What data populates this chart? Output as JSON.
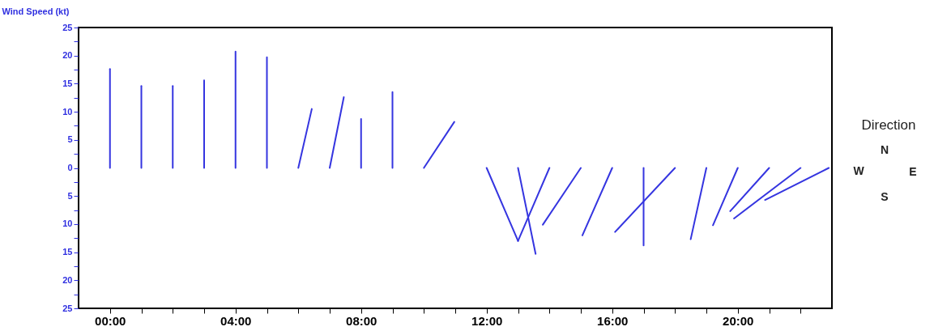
{
  "chart_data": {
    "type": "line",
    "ylabel": "Wind Speed (kt)",
    "annotations": [
      "Direction",
      "N",
      "W",
      "E",
      "S"
    ],
    "xlim": [
      -1,
      23
    ],
    "ylim": [
      -25,
      25
    ],
    "xticks": [
      {
        "value": 0,
        "label": "00:00"
      },
      {
        "value": 1,
        "label": null
      },
      {
        "value": 2,
        "label": null
      },
      {
        "value": 3,
        "label": null
      },
      {
        "value": 4,
        "label": "04:00"
      },
      {
        "value": 5,
        "label": null
      },
      {
        "value": 6,
        "label": null
      },
      {
        "value": 7,
        "label": null
      },
      {
        "value": 8,
        "label": "08:00"
      },
      {
        "value": 9,
        "label": null
      },
      {
        "value": 10,
        "label": null
      },
      {
        "value": 11,
        "label": null
      },
      {
        "value": 12,
        "label": "12:00"
      },
      {
        "value": 13,
        "label": null
      },
      {
        "value": 14,
        "label": null
      },
      {
        "value": 15,
        "label": null
      },
      {
        "value": 16,
        "label": "16:00"
      },
      {
        "value": 17,
        "label": null
      },
      {
        "value": 18,
        "label": null
      },
      {
        "value": 19,
        "label": null
      },
      {
        "value": 20,
        "label": "20:00"
      },
      {
        "value": 21,
        "label": null
      },
      {
        "value": 22,
        "label": null
      }
    ],
    "yticks": [
      {
        "value": -25,
        "label": "25"
      },
      {
        "value": -22.5,
        "label": null
      },
      {
        "value": -20,
        "label": "20"
      },
      {
        "value": -17.5,
        "label": null
      },
      {
        "value": -15,
        "label": "15"
      },
      {
        "value": -12.5,
        "label": null
      },
      {
        "value": -10,
        "label": "10"
      },
      {
        "value": -7.5,
        "label": null
      },
      {
        "value": -5,
        "label": "5"
      },
      {
        "value": -2.5,
        "label": null
      },
      0,
      {
        "value": 2.5,
        "label": null
      },
      5,
      {
        "value": 7.5,
        "label": null
      },
      10,
      {
        "value": 12.5,
        "label": null
      },
      15,
      {
        "value": 17.5,
        "label": null
      },
      20,
      {
        "value": 22.5,
        "label": null
      },
      25
    ],
    "grid": false,
    "legend": false,
    "marker": "none",
    "line_style": "solid",
    "series": [
      {
        "color": "#3535e0",
        "x": [
          0,
          0
        ],
        "values": [
          0,
          17.6
        ]
      },
      {
        "color": "#3535e0",
        "x": [
          1,
          1
        ],
        "values": [
          0,
          14.6
        ]
      },
      {
        "color": "#3535e0",
        "x": [
          2,
          2
        ],
        "values": [
          0,
          14.6
        ]
      },
      {
        "color": "#3535e0",
        "x": [
          3,
          3
        ],
        "values": [
          0,
          15.6
        ]
      },
      {
        "color": "#3535e0",
        "x": [
          4,
          4
        ],
        "values": [
          0,
          20.7
        ]
      },
      {
        "color": "#3535e0",
        "x": [
          5,
          5
        ],
        "values": [
          0,
          19.7
        ]
      },
      {
        "color": "#3535e0",
        "x": [
          6,
          6.43
        ],
        "values": [
          0,
          10.5
        ]
      },
      {
        "color": "#3535e0",
        "x": [
          7,
          7.45
        ],
        "values": [
          0,
          12.6
        ]
      },
      {
        "color": "#3535e0",
        "x": [
          8,
          8
        ],
        "values": [
          0,
          8.7
        ]
      },
      {
        "color": "#3535e0",
        "x": [
          9,
          9
        ],
        "values": [
          0,
          13.5
        ]
      },
      {
        "color": "#3535e0",
        "x": [
          10,
          10.97
        ],
        "values": [
          0,
          8.2
        ]
      },
      {
        "color": "#3535e0",
        "x": [
          12,
          13.0
        ],
        "values": [
          0,
          -13.0
        ]
      },
      {
        "color": "#3535e0",
        "x": [
          13,
          13.56
        ],
        "values": [
          0,
          -15.3
        ]
      },
      {
        "color": "#3535e0",
        "x": [
          14,
          13.0
        ],
        "values": [
          0,
          -13.0
        ]
      },
      {
        "color": "#3535e0",
        "x": [
          15,
          13.79
        ],
        "values": [
          0,
          -10.1
        ]
      },
      {
        "color": "#3535e0",
        "x": [
          16,
          15.05
        ],
        "values": [
          0,
          -12.0
        ]
      },
      {
        "color": "#3535e0",
        "x": [
          17,
          17
        ],
        "values": [
          0,
          -13.8
        ]
      },
      {
        "color": "#3535e0",
        "x": [
          18,
          16.09
        ],
        "values": [
          0,
          -11.4
        ]
      },
      {
        "color": "#3535e0",
        "x": [
          19,
          18.5
        ],
        "values": [
          0,
          -12.7
        ]
      },
      {
        "color": "#3535e0",
        "x": [
          20,
          19.21
        ],
        "values": [
          0,
          -10.2
        ]
      },
      {
        "color": "#3535e0",
        "x": [
          21,
          19.76
        ],
        "values": [
          0,
          -7.7
        ]
      },
      {
        "color": "#3535e0",
        "x": [
          22,
          19.88
        ],
        "values": [
          0,
          -9.0
        ]
      },
      {
        "color": "#3535e0",
        "x": [
          22.9,
          20.87
        ],
        "values": [
          0,
          -5.7
        ]
      }
    ]
  }
}
